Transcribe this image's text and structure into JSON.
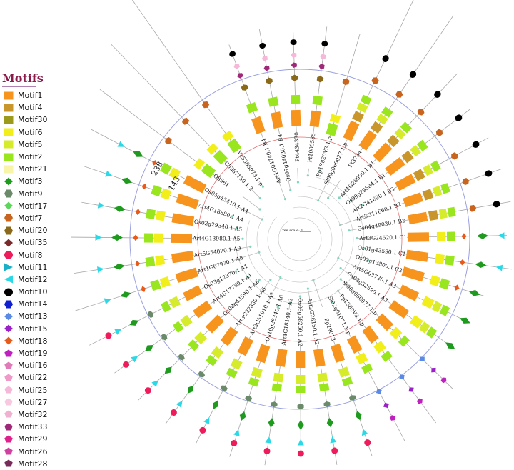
{
  "legend": {
    "title": "Motifs",
    "items": [
      {
        "name": "Motif1",
        "shape": "rect",
        "color": "#f7941d"
      },
      {
        "name": "Motif4",
        "shape": "rect",
        "color": "#c8962a"
      },
      {
        "name": "Motif30",
        "shape": "rect",
        "color": "#9c9a1c"
      },
      {
        "name": "Motif6",
        "shape": "rect",
        "color": "#f2ee1a"
      },
      {
        "name": "Motif5",
        "shape": "rect",
        "color": "#d6ec2a"
      },
      {
        "name": "Motif2",
        "shape": "rect",
        "color": "#99e61e"
      },
      {
        "name": "Motif21",
        "shape": "rect",
        "color": "#f8f5a8"
      },
      {
        "name": "Motif3",
        "shape": "diamond",
        "color": "#1f9a1f"
      },
      {
        "name": "Motif9",
        "shape": "hexagon",
        "color": "#6a8a6a"
      },
      {
        "name": "Motif17",
        "shape": "diamond",
        "color": "#5ed65e"
      },
      {
        "name": "Motif7",
        "shape": "hexagon",
        "color": "#c8641e"
      },
      {
        "name": "Motif20",
        "shape": "hexagon",
        "color": "#8a6a1a"
      },
      {
        "name": "Motif35",
        "shape": "diamond",
        "color": "#7a2a2a"
      },
      {
        "name": "Motif8",
        "shape": "ellipse",
        "color": "#ee1c5a"
      },
      {
        "name": "Motif11",
        "shape": "triangle-right",
        "color": "#1ab0c8"
      },
      {
        "name": "Motif12",
        "shape": "triangle-left",
        "color": "#2ad8e6"
      },
      {
        "name": "Motif10",
        "shape": "ellipse",
        "color": "#000000"
      },
      {
        "name": "Motif14",
        "shape": "hexagon",
        "color": "#1020d0"
      },
      {
        "name": "Motif13",
        "shape": "diamond",
        "color": "#5a8ae6"
      },
      {
        "name": "Motif15",
        "shape": "diamond",
        "color": "#9a20c8"
      },
      {
        "name": "Motif18",
        "shape": "diamond",
        "color": "#e85a1a"
      },
      {
        "name": "Motif19",
        "shape": "pentagon",
        "color": "#c020c0"
      },
      {
        "name": "Motif16",
        "shape": "pentagon",
        "color": "#e07ab8"
      },
      {
        "name": "Motif22",
        "shape": "pentagon",
        "color": "#f098c8"
      },
      {
        "name": "Motif25",
        "shape": "pentagon",
        "color": "#f6b8d8"
      },
      {
        "name": "Motif27",
        "shape": "pentagon",
        "color": "#f8c8e0"
      },
      {
        "name": "Motif32",
        "shape": "pentagon",
        "color": "#f0b0d0"
      },
      {
        "name": "Motif33",
        "shape": "pentagon",
        "color": "#a02878"
      },
      {
        "name": "Motif29",
        "shape": "pentagon",
        "color": "#e0208c"
      },
      {
        "name": "Motif26",
        "shape": "pentagon",
        "color": "#d040a0"
      },
      {
        "name": "Motif28",
        "shape": "pentagon",
        "color": "#7a2a5a"
      }
    ]
  },
  "tree": {
    "scale_label": "Tree scale: 1",
    "ring_labels": [
      "238",
      "143"
    ],
    "sequences": [
      {
        "label": "Art1G04740.1 B4"
      },
      {
        "label": "Os07g44080.1 B4"
      },
      {
        "label": "Pt4434330"
      },
      {
        "label": "Pt1000585"
      },
      {
        "label": "Pp1S820V3.1.p"
      },
      {
        "label": "Sl00g060027.1.p"
      },
      {
        "label": "Pt3734"
      },
      {
        "label": "Art1G26090.1 B1"
      },
      {
        "label": "Os09g29584.1 B1"
      },
      {
        "label": "Art2G41690.1 B3"
      },
      {
        "label": "Art3G11660.1 B2"
      },
      {
        "label": "Os04g49030.1 B2"
      },
      {
        "label": "Art3G24520.1 C1"
      },
      {
        "label": "Os01g43590.1 C1"
      },
      {
        "label": "Os02g13800.1 C2"
      },
      {
        "label": "Art5G03720.1 A3"
      },
      {
        "label": "Os02g32590.1 A3"
      },
      {
        "label": "Sl00g060077.1.p"
      },
      {
        "label": "Pp1S80V3.1.p"
      },
      {
        "label": "Sl02g01071.1.p"
      },
      {
        "label": "Pp29013"
      },
      {
        "label": "Art2G26150.1 A2"
      },
      {
        "label": "Os03g58250.1 A2"
      },
      {
        "label": "Art4G18140.1 A2"
      },
      {
        "label": "Os10g28340.1 A6"
      },
      {
        "label": "Art3G51910.1 A7"
      },
      {
        "label": "Art3G22830.1 A6"
      },
      {
        "label": "Os08g43590.1 A6"
      },
      {
        "label": "Art4G17750.1 A1"
      },
      {
        "label": "Os03g12370.1 A1"
      },
      {
        "label": "Art1G67970.1 A8"
      },
      {
        "label": "Art5G54070.1 A9"
      },
      {
        "label": "Art4G13980.1 A5"
      },
      {
        "label": "Os02g29340.1 A5"
      },
      {
        "label": "Art4G18880.1 A4"
      },
      {
        "label": "Os05g45410.1 A4"
      },
      {
        "label": "O8561"
      },
      {
        "label": "C5387150.1.2"
      },
      {
        "label": "Vc5386073.1.p"
      }
    ]
  }
}
